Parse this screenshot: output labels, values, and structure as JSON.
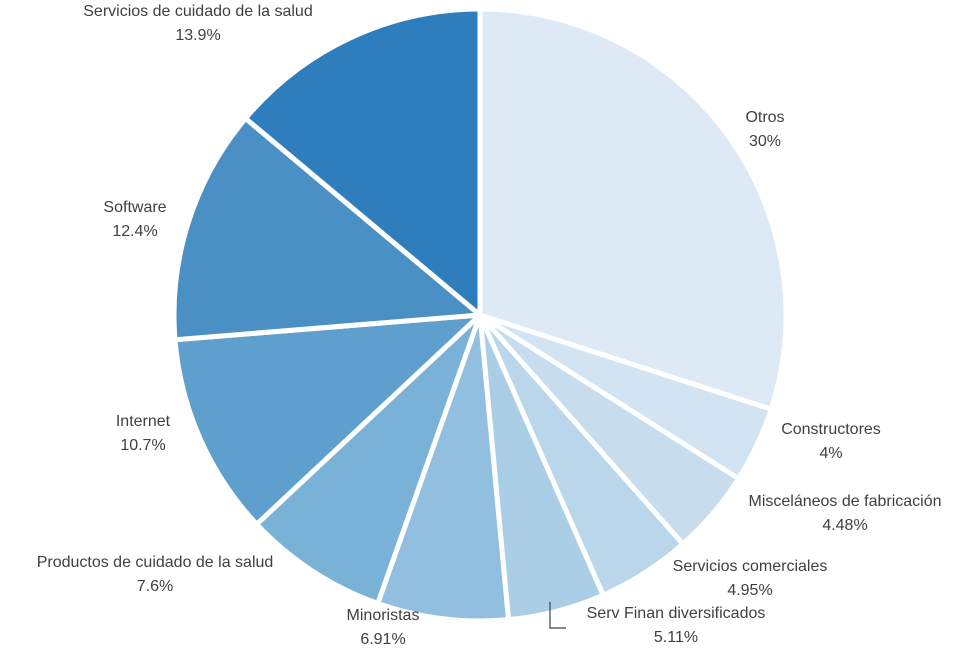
{
  "chart_data": {
    "type": "pie",
    "title": "",
    "slices": [
      {
        "label": "Otros",
        "value": 30,
        "value_label": "30%",
        "color": "#dde9f5"
      },
      {
        "label": "Constructores",
        "value": 4,
        "value_label": "4%",
        "color": "#d2e3f2"
      },
      {
        "label": "Misceláneos de fabricación",
        "value": 4.48,
        "value_label": "4.48%",
        "color": "#c7ddee"
      },
      {
        "label": "Servicios comerciales",
        "value": 4.95,
        "value_label": "4.95%",
        "color": "#bad6ea"
      },
      {
        "label": "Serv Finan diversificados",
        "value": 5.11,
        "value_label": "5.11%",
        "color": "#aacee6"
      },
      {
        "label": "Minoristas",
        "value": 6.91,
        "value_label": "6.91%",
        "color": "#92bfdf"
      },
      {
        "label": "Productos de cuidado de la salud",
        "value": 7.6,
        "value_label": "7.6%",
        "color": "#7ab1d6"
      },
      {
        "label": "Internet",
        "value": 10.7,
        "value_label": "10.7%",
        "color": "#5f9fcd"
      },
      {
        "label": "Software",
        "value": 12.4,
        "value_label": "12.4%",
        "color": "#4a90c5"
      },
      {
        "label": "Servicios de cuidado de la salud",
        "value": 13.9,
        "value_label": "13.9%",
        "color": "#2e7ebd"
      }
    ]
  }
}
